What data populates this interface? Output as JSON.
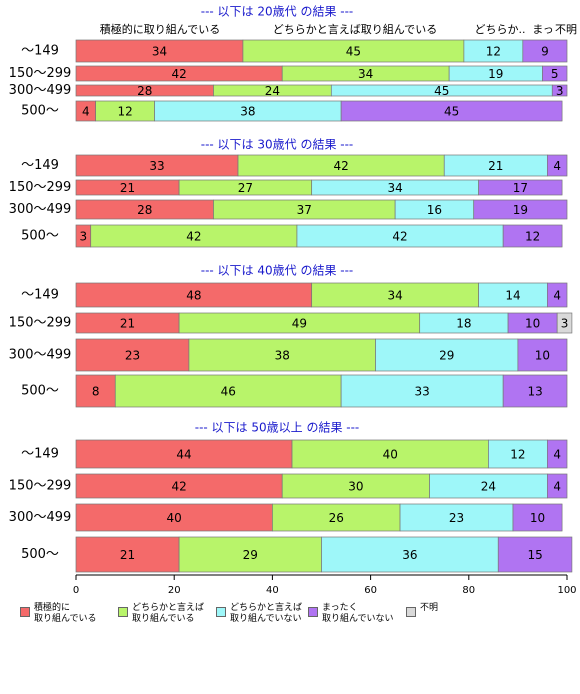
{
  "chart_data": {
    "type": "stacked-bar-panels",
    "header_labels": [
      "積極的に取り組んでいる",
      "どちらかと言えば取り組んでいる",
      "どちらか..",
      "まっ",
      "不明"
    ],
    "series": [
      {
        "name": "積極的に\n取り組んでいる",
        "color": "#f46a6a"
      },
      {
        "name": "どちらかと言えば\n取り組んでいる",
        "color": "#b8f46a"
      },
      {
        "name": "どちらかと言えば\n取り組んでいない",
        "color": "#9ef7f9"
      },
      {
        "name": "まったく\n取り組んでいない",
        "color": "#b074f2"
      },
      {
        "name": "不明",
        "color": "#d9d9d9"
      }
    ],
    "panels": [
      {
        "title": "--- 以下は 20歳代 の結果 ---",
        "categories": [
          "～149",
          "150～299",
          "300～499",
          "500～"
        ],
        "values": [
          [
            34,
            45,
            12,
            9,
            null
          ],
          [
            42,
            34,
            19,
            5,
            null
          ],
          [
            28,
            24,
            45,
            3,
            null
          ],
          [
            4,
            12,
            38,
            45,
            null
          ]
        ]
      },
      {
        "title": "--- 以下は 30歳代 の結果 ---",
        "categories": [
          "～149",
          "150～299",
          "300～499",
          "500～"
        ],
        "values": [
          [
            33,
            42,
            21,
            4,
            null
          ],
          [
            21,
            27,
            34,
            17,
            null
          ],
          [
            28,
            37,
            16,
            19,
            null
          ],
          [
            3,
            42,
            42,
            12,
            null
          ]
        ]
      },
      {
        "title": "--- 以下は 40歳代 の結果 ---",
        "categories": [
          "～149",
          "150～299",
          "300～499",
          "500～"
        ],
        "values": [
          [
            48,
            34,
            14,
            4,
            null
          ],
          [
            21,
            49,
            18,
            10,
            3
          ],
          [
            23,
            38,
            29,
            10,
            null
          ],
          [
            8,
            46,
            33,
            13,
            null
          ]
        ]
      },
      {
        "title": "--- 以下は 50歳以上 の結果 ---",
        "categories": [
          "～149",
          "150～299",
          "300～499",
          "500～"
        ],
        "values": [
          [
            44,
            40,
            12,
            4,
            null
          ],
          [
            42,
            30,
            24,
            4,
            null
          ],
          [
            40,
            26,
            23,
            10,
            null
          ],
          [
            21,
            29,
            36,
            15,
            null
          ]
        ]
      }
    ],
    "xlim": [
      0,
      100
    ],
    "xticks": [
      0,
      20,
      40,
      60,
      80,
      100
    ]
  }
}
